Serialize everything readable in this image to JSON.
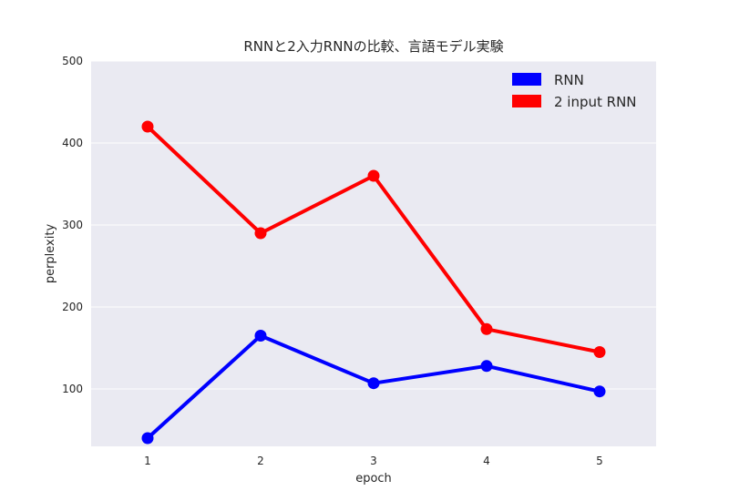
{
  "chart_data": {
    "type": "line",
    "title": "RNNと2入力RNNの比較、言語モデル実験",
    "xlabel": "epoch",
    "ylabel": "perplexity",
    "x": [
      1,
      2,
      3,
      4,
      5
    ],
    "xlim": [
      0.5,
      5.5
    ],
    "ylim": [
      30,
      500
    ],
    "yticks": [
      100,
      200,
      300,
      400,
      500
    ],
    "grid": true,
    "legend_position": "top-right",
    "series": [
      {
        "name": "RNN",
        "color": "#0000ff",
        "values": [
          40,
          165,
          107,
          128,
          97
        ]
      },
      {
        "name": "2 input RNN",
        "color": "#ff0000",
        "values": [
          420,
          290,
          360,
          173,
          145
        ]
      }
    ]
  }
}
